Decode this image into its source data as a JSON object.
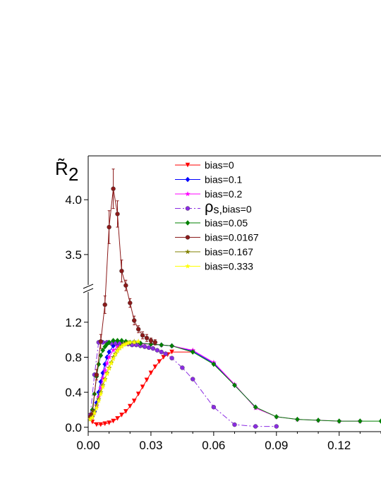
{
  "chart_data": {
    "type": "line",
    "title": "",
    "ylabel": "R̃",
    "ylabel_sub": "2",
    "xlabel": "",
    "xlim": [
      0,
      0.14
    ],
    "ylim_lower": [
      -0.05,
      1.65
    ],
    "ylim_upper": [
      3.3,
      4.4
    ],
    "axis_break": true,
    "legend_position": "top-center",
    "x_ticks": [
      "0.00",
      "0.03",
      "0.06",
      "0.09",
      "0.12"
    ],
    "x_tick_values": [
      0,
      0.03,
      0.06,
      0.09,
      0.12
    ],
    "y_ticks_lower": [
      "0.0",
      "0.4",
      "0.8",
      "1.2"
    ],
    "y_tick_values_lower": [
      0,
      0.4,
      0.8,
      1.2
    ],
    "y_ticks_upper": [
      "3.5",
      "4.0"
    ],
    "y_tick_values_upper": [
      3.5,
      4.0
    ],
    "series": [
      {
        "name": "bias=0",
        "color": "#ff0000",
        "marker": "triangle-down",
        "dash": "",
        "x": [
          0.001,
          0.002,
          0.004,
          0.006,
          0.008,
          0.01,
          0.012,
          0.014,
          0.016,
          0.018,
          0.02,
          0.022,
          0.024,
          0.026,
          0.028,
          0.03,
          0.032,
          0.034,
          0.036,
          0.038,
          0.04,
          0.05
        ],
        "y": [
          0.1,
          0.06,
          0.03,
          0.03,
          0.04,
          0.05,
          0.07,
          0.1,
          0.14,
          0.18,
          0.24,
          0.3,
          0.38,
          0.46,
          0.54,
          0.62,
          0.69,
          0.75,
          0.8,
          0.83,
          0.86,
          0.86
        ]
      },
      {
        "name": "bias=0.1",
        "color": "#0000ff",
        "marker": "diamond",
        "dash": "",
        "x": [
          0.001,
          0.002,
          0.003,
          0.004,
          0.005,
          0.006,
          0.007,
          0.008,
          0.009,
          0.01,
          0.012,
          0.014,
          0.016,
          0.018,
          0.02,
          0.025,
          0.03,
          0.035,
          0.04,
          0.05,
          0.06,
          0.07,
          0.08
        ],
        "y": [
          0.1,
          0.12,
          0.18,
          0.28,
          0.4,
          0.52,
          0.62,
          0.72,
          0.8,
          0.86,
          0.93,
          0.95,
          0.96,
          0.96,
          0.96,
          0.96,
          0.95,
          0.94,
          0.93,
          0.87,
          0.73,
          0.48,
          0.23
        ]
      },
      {
        "name": "bias=0.2",
        "color": "#ff00ff",
        "marker": "star",
        "dash": "",
        "x": [
          0.001,
          0.002,
          0.003,
          0.004,
          0.005,
          0.006,
          0.007,
          0.008,
          0.009,
          0.01,
          0.012,
          0.014,
          0.016,
          0.018,
          0.02,
          0.025,
          0.03,
          0.035,
          0.04,
          0.05,
          0.06,
          0.07,
          0.08,
          0.09,
          0.1,
          0.11,
          0.12,
          0.13
        ],
        "y": [
          0.1,
          0.12,
          0.16,
          0.24,
          0.34,
          0.45,
          0.56,
          0.65,
          0.73,
          0.8,
          0.88,
          0.92,
          0.94,
          0.95,
          0.95,
          0.95,
          0.95,
          0.94,
          0.93,
          0.88,
          0.74,
          0.49,
          0.22,
          0.12,
          0.09,
          0.08,
          0.07,
          0.07
        ]
      },
      {
        "name": "ρs,bias=0",
        "color": "#8a2be2",
        "marker": "circle",
        "dash": "8 3 2 3",
        "x": [
          0.001,
          0.003,
          0.005,
          0.007,
          0.009,
          0.011,
          0.013,
          0.015,
          0.017,
          0.019,
          0.021,
          0.023,
          0.025,
          0.027,
          0.029,
          0.031,
          0.033,
          0.035,
          0.037,
          0.04,
          0.045,
          0.05,
          0.06,
          0.07,
          0.08,
          0.09
        ],
        "y": [
          0.14,
          0.6,
          0.97,
          0.97,
          0.97,
          0.96,
          0.96,
          0.96,
          0.95,
          0.95,
          0.94,
          0.94,
          0.93,
          0.92,
          0.91,
          0.9,
          0.88,
          0.86,
          0.84,
          0.79,
          0.68,
          0.55,
          0.23,
          0.03,
          0.01,
          0.01
        ]
      },
      {
        "name": "bias=0.05",
        "color": "#008000",
        "marker": "diamond",
        "dash": "",
        "x": [
          0.001,
          0.002,
          0.003,
          0.004,
          0.005,
          0.006,
          0.007,
          0.008,
          0.009,
          0.01,
          0.012,
          0.014,
          0.016,
          0.018,
          0.02,
          0.025,
          0.03,
          0.035,
          0.04,
          0.05,
          0.06,
          0.07,
          0.08,
          0.09,
          0.1,
          0.11,
          0.12,
          0.13,
          0.14
        ],
        "y": [
          0.12,
          0.2,
          0.38,
          0.58,
          0.72,
          0.82,
          0.88,
          0.92,
          0.95,
          0.97,
          0.99,
          0.99,
          0.99,
          0.98,
          0.97,
          0.96,
          0.95,
          0.94,
          0.93,
          0.86,
          0.72,
          0.48,
          0.23,
          0.12,
          0.09,
          0.08,
          0.07,
          0.07,
          0.07
        ]
      },
      {
        "name": "bias=0.0167",
        "color": "#8b1a1a",
        "marker": "circle",
        "dash": "",
        "break_at": 4,
        "x": [
          0.001,
          0.002,
          0.004,
          0.006,
          0.008,
          0.01,
          0.012,
          0.014,
          0.016,
          0.018,
          0.02,
          0.022,
          0.024,
          0.026,
          0.028,
          0.03,
          0.032
        ],
        "y": [
          0.12,
          0.15,
          0.6,
          0.98,
          1.4,
          3.75,
          4.1,
          3.87,
          3.35,
          1.62,
          1.42,
          1.22,
          1.12,
          1.05,
          1.02,
          0.99,
          0.97
        ],
        "err": [
          0.04,
          0.04,
          0.06,
          0.08,
          0.1,
          0.15,
          0.18,
          0.12,
          0.1,
          0.06,
          0.05,
          0.05,
          0.04,
          0.04,
          0.04,
          0.03,
          0.03
        ]
      },
      {
        "name": "bias=0.167",
        "color": "#808000",
        "marker": "star",
        "dash": "",
        "x": [
          0.001,
          0.002,
          0.003,
          0.004,
          0.005,
          0.006,
          0.007,
          0.008,
          0.009,
          0.01,
          0.011,
          0.012,
          0.013,
          0.014,
          0.015,
          0.016,
          0.017,
          0.018,
          0.019,
          0.02,
          0.022,
          0.024
        ],
        "y": [
          0.1,
          0.12,
          0.18,
          0.25,
          0.32,
          0.4,
          0.48,
          0.55,
          0.62,
          0.68,
          0.74,
          0.8,
          0.84,
          0.88,
          0.91,
          0.93,
          0.95,
          0.96,
          0.97,
          0.97,
          0.98,
          0.98
        ]
      },
      {
        "name": "bias=0.333",
        "color": "#ffff00",
        "marker": "star",
        "dash": "",
        "x": [
          0.001,
          0.002,
          0.003,
          0.004,
          0.005,
          0.006,
          0.007,
          0.008,
          0.009,
          0.01,
          0.011,
          0.012,
          0.013,
          0.014,
          0.015,
          0.016,
          0.017,
          0.018,
          0.019,
          0.02,
          0.022,
          0.024
        ],
        "y": [
          0.09,
          0.11,
          0.16,
          0.22,
          0.3,
          0.38,
          0.46,
          0.54,
          0.61,
          0.67,
          0.73,
          0.78,
          0.83,
          0.87,
          0.9,
          0.92,
          0.94,
          0.95,
          0.96,
          0.97,
          0.97,
          0.98
        ]
      }
    ]
  }
}
